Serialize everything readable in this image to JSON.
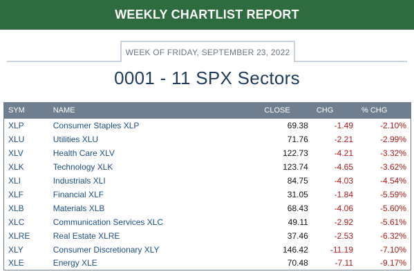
{
  "report": {
    "banner_title": "WEEKLY CHARTLIST REPORT",
    "week_label": "WEEK OF FRIDAY, SEPTEMBER 23, 2022",
    "list_title": "0001 - 11 SPX Sectors"
  },
  "table": {
    "headers": [
      "SYM",
      "NAME",
      "CLOSE",
      "CHG",
      "% CHG"
    ],
    "rows": [
      {
        "sym": "XLP",
        "name": "Consumer Staples XLP",
        "close": "69.38",
        "chg": "-1.49",
        "pct": "-2.10%"
      },
      {
        "sym": "XLU",
        "name": "Utilities XLU",
        "close": "71.76",
        "chg": "-2.21",
        "pct": "-2.99%"
      },
      {
        "sym": "XLV",
        "name": "Health Care XLV",
        "close": "122.73",
        "chg": "-4.21",
        "pct": "-3.32%"
      },
      {
        "sym": "XLK",
        "name": "Technology XLK",
        "close": "123.74",
        "chg": "-4.65",
        "pct": "-3.62%"
      },
      {
        "sym": "XLI",
        "name": "Industrials XLI",
        "close": "84.75",
        "chg": "-4.03",
        "pct": "-4.54%"
      },
      {
        "sym": "XLF",
        "name": "Financial XLF",
        "close": "31.05",
        "chg": "-1.84",
        "pct": "-5.59%"
      },
      {
        "sym": "XLB",
        "name": "Materials XLB",
        "close": "68.43",
        "chg": "-4.06",
        "pct": "-5.60%"
      },
      {
        "sym": "XLC",
        "name": "Communication Services XLC",
        "close": "49.11",
        "chg": "-2.92",
        "pct": "-5.61%"
      },
      {
        "sym": "XLRE",
        "name": "Real Estate XLRE",
        "close": "37.46",
        "chg": "-2.53",
        "pct": "-6.32%"
      },
      {
        "sym": "XLY",
        "name": "Consumer Discretionary XLY",
        "close": "146.42",
        "chg": "-11.19",
        "pct": "-7.10%"
      },
      {
        "sym": "XLE",
        "name": "Energy XLE",
        "close": "70.48",
        "chg": "-7.11",
        "pct": "-9.17%"
      }
    ]
  },
  "colors": {
    "banner_green": "#2e6b3f",
    "title_navy": "#1f3a5a",
    "link_blue": "#1d4e86",
    "negative_red": "#b01818",
    "header_gray": "#6f7f8f"
  }
}
